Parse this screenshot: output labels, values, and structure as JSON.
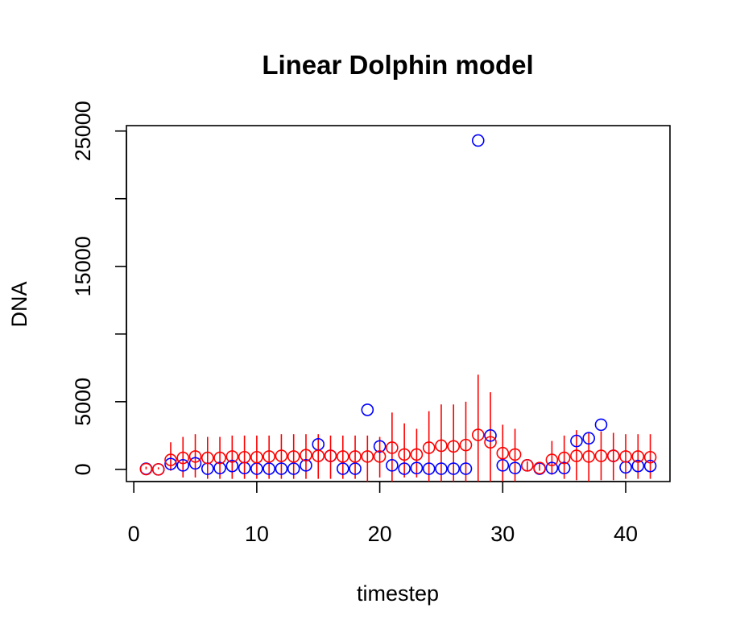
{
  "chart_data": {
    "type": "scatter",
    "title": "Linear Dolphin model",
    "xlabel": "timestep",
    "ylabel": "DNA",
    "xlim": [
      -0.6,
      43.6
    ],
    "ylim": [
      -900,
      25400
    ],
    "xticks": [
      0,
      10,
      20,
      30,
      40
    ],
    "xtick_labels": [
      "0",
      "10",
      "20",
      "30",
      "40"
    ],
    "yticks": [
      0,
      5000,
      10000,
      15000,
      20000,
      25000
    ],
    "ytick_labels": [
      "0",
      "5000",
      "",
      "15000",
      "",
      "25000"
    ],
    "grid": false,
    "colors": {
      "observed": "#0000ff",
      "model": "#ff0000",
      "errorbar": "#ff0000"
    },
    "series": [
      {
        "role": "observed",
        "x": [
          1,
          2,
          3,
          4,
          5,
          6,
          7,
          8,
          9,
          10,
          11,
          12,
          13,
          14,
          15,
          16,
          17,
          18,
          19,
          20,
          21,
          22,
          23,
          24,
          25,
          26,
          27,
          28,
          29,
          30,
          31,
          32,
          33,
          34,
          35,
          36,
          37,
          38,
          39,
          40,
          41,
          42
        ],
        "y": [
          50,
          0,
          400,
          300,
          450,
          50,
          100,
          250,
          100,
          50,
          50,
          50,
          50,
          300,
          1850,
          1000,
          50,
          50,
          4400,
          1700,
          300,
          50,
          100,
          50,
          50,
          50,
          50,
          24300,
          2500,
          300,
          100,
          300,
          50,
          100,
          100,
          2100,
          2300,
          3300,
          1000,
          150,
          250,
          250
        ]
      },
      {
        "role": "model",
        "x": [
          1,
          2,
          3,
          4,
          5,
          6,
          7,
          8,
          9,
          10,
          11,
          12,
          13,
          14,
          15,
          16,
          17,
          18,
          19,
          20,
          21,
          22,
          23,
          24,
          25,
          26,
          27,
          28,
          29,
          30,
          31,
          32,
          33,
          34,
          35,
          36,
          37,
          38,
          39,
          40,
          41,
          42
        ],
        "y": [
          20,
          0,
          700,
          850,
          950,
          850,
          850,
          950,
          900,
          900,
          950,
          1000,
          950,
          1050,
          1000,
          1000,
          950,
          950,
          950,
          950,
          1600,
          1100,
          1100,
          1600,
          1750,
          1700,
          1800,
          2550,
          2000,
          1200,
          1100,
          300,
          100,
          700,
          850,
          1000,
          950,
          1000,
          1000,
          950,
          950,
          900
        ],
        "err_low": [
          0,
          0,
          -100,
          -600,
          -600,
          -700,
          -700,
          -700,
          -700,
          -700,
          -700,
          -700,
          -700,
          -700,
          -700,
          -700,
          -700,
          -700,
          -900,
          -600,
          -900,
          -600,
          -600,
          -900,
          -900,
          -900,
          -900,
          -900,
          -900,
          -900,
          -900,
          -100,
          -100,
          -400,
          -700,
          -800,
          -900,
          -800,
          -800,
          -700,
          -700,
          -700
        ],
        "err_high": [
          200,
          150,
          2000,
          2400,
          2600,
          2400,
          2400,
          2500,
          2500,
          2500,
          2500,
          2600,
          2600,
          2600,
          2600,
          2500,
          2500,
          2500,
          2500,
          2400,
          4200,
          3400,
          3000,
          4300,
          4800,
          4800,
          5000,
          7000,
          5700,
          3300,
          3000,
          600,
          400,
          2100,
          2500,
          2900,
          2700,
          2800,
          2700,
          2600,
          2600,
          2600
        ]
      }
    ]
  }
}
